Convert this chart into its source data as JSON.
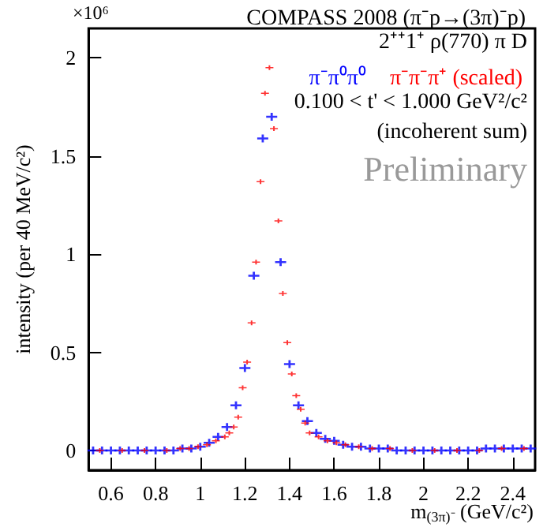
{
  "chart_data": {
    "type": "scatter",
    "title": "COMPASS 2008 (π⁻p→(3π)⁻p)",
    "xlabel": "m$_{(3π)⁻}$ (GeV/c²)",
    "ylabel": "intensity (per 40 MeV/c²)",
    "annotations": [
      "×10⁶",
      "2⁺⁺1⁺ ρ(770) π D",
      "0.100 < t' < 1.000 GeV²/c²",
      "(incoherent sum)",
      "Preliminary"
    ],
    "x": [
      0.52,
      0.56,
      0.6,
      0.64,
      0.68,
      0.72,
      0.76,
      0.8,
      0.84,
      0.88,
      0.92,
      0.96,
      1.0,
      1.04,
      1.08,
      1.12,
      1.16,
      1.2,
      1.24,
      1.28,
      1.32,
      1.36,
      1.4,
      1.44,
      1.48,
      1.52,
      1.56,
      1.6,
      1.64,
      1.68,
      1.72,
      1.76,
      1.8,
      1.84,
      1.88,
      1.92,
      1.96,
      2.0,
      2.04,
      2.08,
      2.12,
      2.16,
      2.2,
      2.24,
      2.28,
      2.32,
      2.36,
      2.4,
      2.44,
      2.48
    ],
    "series": [
      {
        "name": "π⁻π⁰π⁰",
        "color": "#0000ff",
        "values": [
          0,
          0,
          0,
          0,
          0,
          0,
          0,
          0,
          0,
          0,
          0.01,
          0.01,
          0.02,
          0.04,
          0.07,
          0.12,
          0.23,
          0.42,
          0.89,
          1.59,
          1.7,
          0.96,
          0.44,
          0.23,
          0.15,
          0.09,
          0.06,
          0.05,
          0.03,
          0.02,
          0.02,
          0.01,
          0.01,
          0.01,
          0,
          0,
          0,
          0,
          0,
          0,
          0,
          0,
          0,
          0,
          0.01,
          0.01,
          0.01,
          0.01,
          0.01,
          0.01
        ]
      },
      {
        "name": "π⁻π⁻π⁺ (scaled)",
        "color": "#ff0000",
        "x": [
          0.55,
          0.65,
          0.75,
          0.85,
          0.91,
          0.95,
          0.99,
          1.03,
          1.07,
          1.11,
          1.13,
          1.15,
          1.17,
          1.19,
          1.21,
          1.23,
          1.25,
          1.27,
          1.29,
          1.31,
          1.33,
          1.35,
          1.37,
          1.39,
          1.41,
          1.43,
          1.45,
          1.47,
          1.49,
          1.53,
          1.57,
          1.61,
          1.65,
          1.71,
          1.77,
          1.85,
          1.95,
          2.05,
          2.15,
          2.25,
          2.35,
          2.45
        ],
        "values": [
          0,
          0,
          0,
          0,
          0.01,
          0.01,
          0.02,
          0.03,
          0.05,
          0.07,
          0.09,
          0.12,
          0.17,
          0.32,
          0.45,
          0.65,
          0.96,
          1.37,
          1.82,
          1.95,
          1.64,
          1.17,
          0.8,
          0.55,
          0.39,
          0.28,
          0.21,
          0.14,
          0.09,
          0.07,
          0.05,
          0.04,
          0.03,
          0.02,
          0.01,
          0.01,
          0,
          0,
          0,
          0,
          0.01,
          0.01
        ]
      }
    ],
    "xlim": [
      0.5,
      2.5
    ],
    "xticks": [
      0.6,
      0.8,
      1,
      1.2,
      1.4,
      1.6,
      1.8,
      2,
      2.2,
      2.4
    ],
    "ylim": [
      -0.1,
      2.15
    ],
    "yticks": [
      0,
      0.5,
      1,
      1.5,
      2
    ],
    "grid": false,
    "legend": "top right",
    "marker": "cross"
  }
}
